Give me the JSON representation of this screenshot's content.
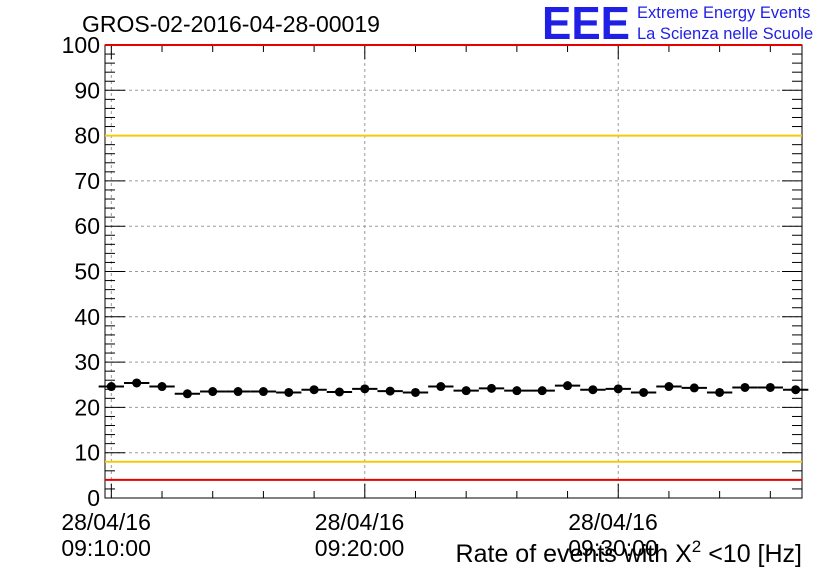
{
  "chart_data": {
    "type": "scatter",
    "title": "GROS-02-2016-04-28-00019",
    "xlabel": "Rate of events with X² <10 [Hz]",
    "ylabel": "",
    "ylim": [
      0,
      100
    ],
    "yticks": [
      "0",
      "10",
      "20",
      "30",
      "40",
      "50",
      "60",
      "70",
      "80",
      "90",
      "100"
    ],
    "xticks": [
      {
        "date": "28/04/16",
        "time": "09:10:00"
      },
      {
        "date": "28/04/16",
        "time": "09:20:00"
      },
      {
        "date": "28/04/16",
        "time": "09:30:00"
      }
    ],
    "xlim_minutes": [
      "09:09:45",
      "09:37:15"
    ],
    "grid": true,
    "series": [
      {
        "marker": "circle",
        "color": "#000000",
        "x": [
          "09:10:00",
          "09:11:00",
          "09:12:00",
          "09:13:00",
          "09:14:00",
          "09:15:00",
          "09:16:00",
          "09:17:00",
          "09:18:00",
          "09:19:00",
          "09:20:00",
          "09:21:00",
          "09:22:00",
          "09:23:00",
          "09:24:00",
          "09:25:00",
          "09:26:00",
          "09:27:00",
          "09:28:00",
          "09:29:00",
          "09:30:00",
          "09:31:00",
          "09:32:00",
          "09:33:00",
          "09:34:00",
          "09:35:00",
          "09:36:00",
          "09:37:00"
        ],
        "y": [
          24.6,
          25.4,
          24.6,
          23.0,
          23.5,
          23.5,
          23.5,
          23.3,
          23.9,
          23.4,
          24.1,
          23.6,
          23.3,
          24.6,
          23.7,
          24.2,
          23.7,
          23.7,
          24.8,
          23.9,
          24.1,
          23.3,
          24.6,
          24.3,
          23.3,
          24.4,
          24.4,
          23.9
        ],
        "xerr_minutes": 0.5
      }
    ],
    "reference_lines": [
      {
        "y": 80,
        "color": "#f2cc0c"
      },
      {
        "y": 8,
        "color": "#f2cc0c"
      },
      {
        "y": 100,
        "color": "#e60000"
      },
      {
        "y": 4,
        "color": "#e60000"
      }
    ]
  },
  "logo": {
    "mark": "EEE",
    "line1": "Extreme Energy Events",
    "line2": "La Scienza nelle Scuole"
  }
}
